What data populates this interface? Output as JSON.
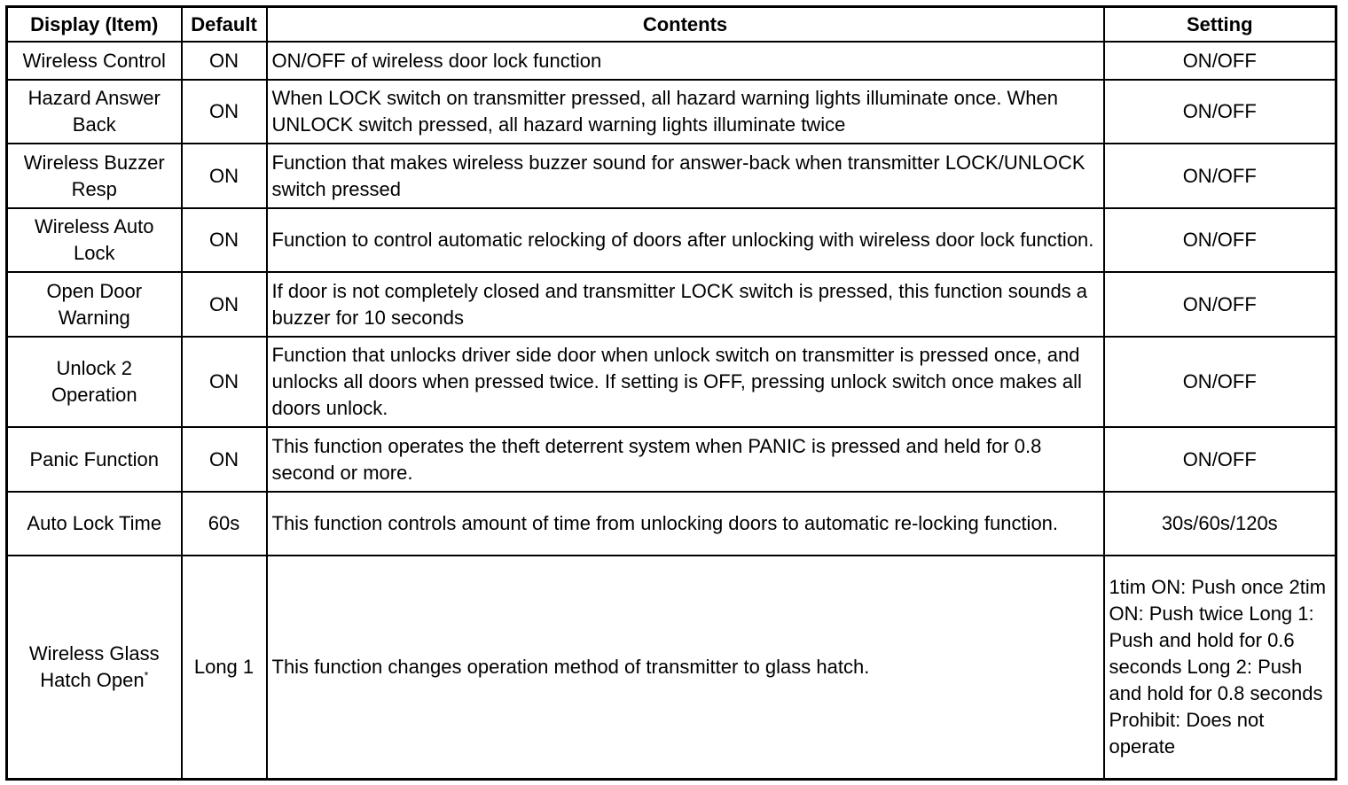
{
  "headers": [
    "Display (Item)",
    "Default",
    "Contents",
    "Setting"
  ],
  "rows": [
    {
      "item": "Wireless Control",
      "default": "ON",
      "contents": "ON/OFF of wireless door lock function",
      "setting": "ON/OFF"
    },
    {
      "item": "Hazard Answer Back",
      "default": "ON",
      "contents": "When LOCK switch on transmitter pressed, all hazard warning lights illuminate once. When UNLOCK switch pressed, all hazard warning lights illuminate twice",
      "setting": "ON/OFF"
    },
    {
      "item": "Wireless Buzzer Resp",
      "default": "ON",
      "contents": "Function that makes wireless buzzer sound for answer-back when transmitter LOCK/UNLOCK switch pressed",
      "setting": "ON/OFF"
    },
    {
      "item": "Wireless Auto Lock",
      "default": "ON",
      "contents": "Function to control automatic relocking of doors after unlocking with wireless door lock function.",
      "setting": "ON/OFF"
    },
    {
      "item": "Open Door Warning",
      "default": "ON",
      "contents": "If door is not completely closed and transmitter LOCK switch is pressed, this function sounds a buzzer for 10 seconds",
      "setting": "ON/OFF"
    },
    {
      "item": "Unlock 2 Operation",
      "default": "ON",
      "contents": "Function that unlocks driver side door when unlock switch on transmitter is pressed once, and unlocks all doors when pressed twice. If setting is OFF, pressing unlock switch once makes all doors unlock.",
      "setting": "ON/OFF"
    },
    {
      "item": "Panic Function",
      "default": "ON",
      "contents": "This function operates the theft deterrent system when PANIC is pressed and held for 0.8 second or more.",
      "setting": "ON/OFF"
    },
    {
      "item": "Auto Lock Time",
      "default": "60s",
      "contents": "This function controls amount of time from unlocking doors to automatic re-locking function.",
      "setting": "30s/60s/120s"
    }
  ],
  "last_row": {
    "item": "Wireless Glass Hatch Open",
    "footnote_mark": "*",
    "default": "Long 1",
    "contents": "This function changes operation method of transmitter to glass hatch.",
    "setting": "1tim ON: Push once 2tim ON: Push twice Long 1: Push and hold for 0.6 seconds Long 2: Push and hold for 0.8 seconds Prohibit: Does not operate"
  }
}
